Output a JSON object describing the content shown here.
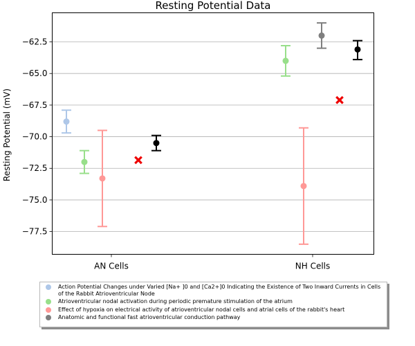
{
  "chart_data": {
    "type": "scatter",
    "title": "Resting Potential Data",
    "xlabel": "",
    "ylabel": "Resting Potential (mV)",
    "categories": [
      "AN Cells",
      "NH Cells"
    ],
    "ylim": [
      -79.3,
      -60.2
    ],
    "yticks": [
      -62.5,
      -65.0,
      -67.5,
      -70.0,
      -72.5,
      -75.0,
      -77.5
    ],
    "ytick_labels": [
      "−62.5",
      "−65.0",
      "−67.5",
      "−70.0",
      "−72.5",
      "−75.0",
      "−77.5"
    ],
    "grid": "horizontal",
    "legend_placement": "bottom",
    "series": [
      {
        "name": "Action Potential Changes under Varied [Na+ ]0 and [Ca2+]0 Indicating the Existence of Two Inward Currents in Cells of the Rabbit Atrioventricular Node",
        "color": "#aec7e8",
        "marker": "circle",
        "points": [
          {
            "category": "AN Cells",
            "y": -68.8,
            "low": -69.7,
            "high": -67.9
          },
          {
            "category": "NH Cells",
            "y": null,
            "low": null,
            "high": null
          }
        ]
      },
      {
        "name": "Atrioventricular nodal activation during periodic premature stimulation of the atrium",
        "color": "#98df8a",
        "marker": "circle",
        "points": [
          {
            "category": "AN Cells",
            "y": -72.0,
            "low": -72.9,
            "high": -71.1
          },
          {
            "category": "NH Cells",
            "y": -64.0,
            "low": -65.2,
            "high": -62.8
          }
        ]
      },
      {
        "name": "Effect of hypoxia on electrical activity of atrioventricular nodal cells and atrial cells of the rabbit's heart",
        "color": "#ff9896",
        "marker": "circle",
        "points": [
          {
            "category": "AN Cells",
            "y": -73.3,
            "low": -77.1,
            "high": -69.5
          },
          {
            "category": "NH Cells",
            "y": -73.9,
            "low": -78.5,
            "high": -69.3
          }
        ]
      },
      {
        "name": "Anatomic and functional fast atrioventricular conduction pathway",
        "color": "#7f7f7f",
        "marker": "circle",
        "points": [
          {
            "category": "AN Cells",
            "y": null,
            "low": null,
            "high": null
          },
          {
            "category": "NH Cells",
            "y": -62.0,
            "low": -63.0,
            "high": -61.0
          }
        ]
      },
      {
        "name": "",
        "color": "#ee0000",
        "marker": "x",
        "points": [
          {
            "category": "AN Cells",
            "y": -71.85,
            "low": null,
            "high": null
          },
          {
            "category": "NH Cells",
            "y": -67.1,
            "low": null,
            "high": null
          }
        ]
      },
      {
        "name": "",
        "color": "#000000",
        "marker": "circle",
        "points": [
          {
            "category": "AN Cells",
            "y": -70.5,
            "low": -71.1,
            "high": -69.9
          },
          {
            "category": "NH Cells",
            "y": -63.1,
            "low": -63.9,
            "high": -62.4
          }
        ]
      }
    ]
  },
  "legend": {
    "items": [
      {
        "label": "Action Potential Changes under Varied [Na+ ]0 and [Ca2+]0 Indicating the Existence of Two Inward Currents in Cells of the Rabbit Atrioventricular Node",
        "color": "#aec7e8"
      },
      {
        "label": "Atrioventricular nodal activation during periodic premature stimulation of the atrium",
        "color": "#98df8a"
      },
      {
        "label": "Effect of hypoxia on electrical activity of atrioventricular nodal cells and atrial cells of the rabbit's heart",
        "color": "#ff9896"
      },
      {
        "label": "Anatomic and functional fast atrioventricular conduction pathway",
        "color": "#7f7f7f"
      }
    ]
  }
}
